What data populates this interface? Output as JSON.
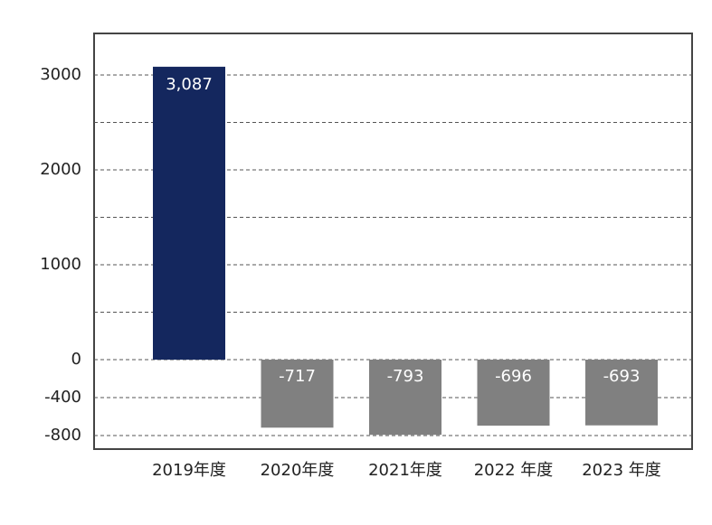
{
  "chart_data": {
    "type": "bar",
    "categories": [
      "2019年度",
      "2020年度",
      "2021年度",
      "2022 年度",
      "2023 年度"
    ],
    "values": [
      3087,
      -717,
      -793,
      -696,
      -693
    ],
    "value_labels": [
      "3,087",
      "-717",
      "-793",
      "-696",
      "-693"
    ],
    "colors": [
      "#14275e",
      "#808080",
      "#808080",
      "#808080",
      "#808080"
    ],
    "ylim": [
      -943,
      3438
    ],
    "yticks": [
      -800,
      -400,
      0,
      1000,
      2000,
      3000
    ],
    "minor_yticks": [
      500,
      1500,
      2500
    ],
    "grid": true
  }
}
